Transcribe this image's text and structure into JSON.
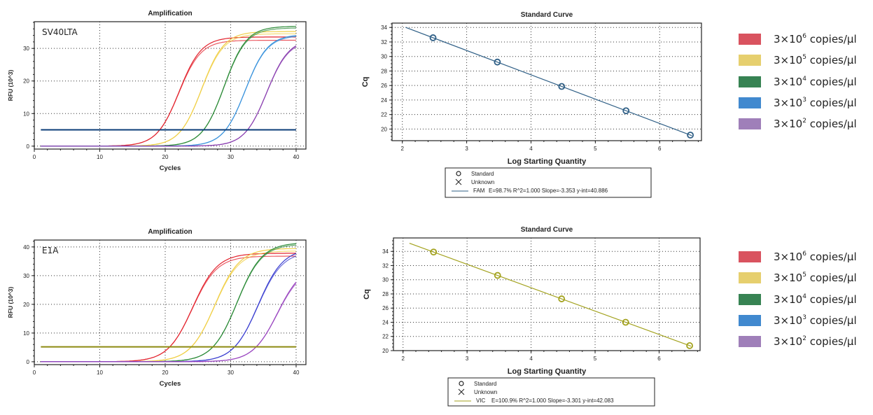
{
  "legend": [
    {
      "base": "3×10",
      "exponent": "6",
      "unit": " copies/µl",
      "color": "#d9535f"
    },
    {
      "base": "3×10",
      "exponent": "5",
      "unit": " copies/µl",
      "color": "#e6cf6e"
    },
    {
      "base": "3×10",
      "exponent": "4",
      "unit": " copies/µl",
      "color": "#378353"
    },
    {
      "base": "3×10",
      "exponent": "3",
      "unit": " copies/µl",
      "color": "#4189cf"
    },
    {
      "base": "3×10",
      "exponent": "2",
      "unit": " copies/µl",
      "color": "#9f7fb9"
    }
  ],
  "chart_data": [
    {
      "type": "line",
      "title": "Amplification",
      "label": "SV40LTA",
      "xlabel": "Cycles",
      "ylabel": "RFU (10^3)",
      "xlim": [
        0,
        41.5
      ],
      "ylim": [
        -0.9,
        38.2
      ],
      "xticks": [
        0,
        10,
        20,
        30,
        40
      ],
      "yticks": [
        0,
        10,
        20,
        30
      ],
      "grid": true,
      "threshold": 5,
      "threshold_color": "#0b3c78",
      "series": [
        {
          "name": "3×10^6 copies/µl",
          "color": "#e3242f",
          "cq": 19.17,
          "plateau": [
            33.5,
            32.5
          ]
        },
        {
          "name": "3×10^5 copies/µl",
          "color": "#f0cf45",
          "cq": 22.52,
          "plateau": [
            35.2,
            34.5
          ]
        },
        {
          "name": "3×10^4 copies/µl",
          "color": "#2a8a36",
          "cq": 25.87,
          "plateau": [
            36.8,
            36.3
          ]
        },
        {
          "name": "3×10^3 copies/µl",
          "color": "#3892dc",
          "cq": 29.23,
          "plateau": [
            34.3,
            34.0
          ]
        },
        {
          "name": "3×10^2 copies/µl",
          "color": "#8a3fb0",
          "cq": 32.58,
          "plateau": [
            33.0,
            32.6
          ]
        }
      ]
    },
    {
      "type": "scatter",
      "title": "Standard Curve",
      "xlabel": "Log Starting Quantity",
      "ylabel": "Cq",
      "xlim": [
        1.84,
        6.65
      ],
      "ylim": [
        18.4,
        34.6
      ],
      "xticks": [
        2,
        3,
        4,
        5,
        6
      ],
      "yticks": [
        20,
        22,
        24,
        26,
        28,
        30,
        32,
        34
      ],
      "grid": true,
      "color": "#2f5f86",
      "points": {
        "x": [
          2.477,
          3.477,
          4.477,
          5.477,
          6.477
        ],
        "y": [
          32.58,
          29.23,
          25.87,
          22.52,
          19.17
        ]
      },
      "fit": {
        "slope": -3.353,
        "intercept": 40.886,
        "x_range": [
          2.05,
          6.5
        ]
      },
      "legend": {
        "standard": "Standard",
        "unknown": "Unknown",
        "fit_label": "FAM",
        "stats": "E=98.7% R^2=1.000 Slope=-3.353 y-int=40.886"
      }
    },
    {
      "type": "line",
      "title": "Amplification",
      "label": "E1A",
      "xlabel": "Cycles",
      "ylabel": "RFU (10^3)",
      "xlim": [
        0,
        41.5
      ],
      "ylim": [
        -1,
        42.4
      ],
      "xticks": [
        0,
        10,
        20,
        30,
        40
      ],
      "yticks": [
        0,
        10,
        20,
        30,
        40
      ],
      "grid": true,
      "threshold": 5.2,
      "threshold_color": "#8c8a10",
      "series": [
        {
          "name": "3×10^6 copies/µl",
          "color": "#e3242f",
          "cq": 20.7,
          "plateau": [
            37.8,
            36.8
          ]
        },
        {
          "name": "3×10^5 copies/µl",
          "color": "#f0cf45",
          "cq": 24.0,
          "plateau": [
            39.5,
            38.6
          ]
        },
        {
          "name": "3×10^4 copies/µl",
          "color": "#2a8a36",
          "cq": 27.3,
          "plateau": [
            41.5,
            41.0
          ]
        },
        {
          "name": "3×10^3 copies/µl",
          "color": "#3b3fd0",
          "cq": 30.61,
          "plateau": [
            39.5,
            38.5
          ]
        },
        {
          "name": "3×10^2 copies/µl",
          "color": "#9a45c0",
          "cq": 33.91,
          "plateau": [
            34.0,
            33.2
          ]
        }
      ]
    },
    {
      "type": "scatter",
      "title": "Standard Curve",
      "xlabel": "Log Starting Quantity",
      "ylabel": "Cq",
      "xlim": [
        1.85,
        6.64
      ],
      "ylim": [
        20,
        35.9
      ],
      "xticks": [
        2,
        3,
        4,
        5,
        6
      ],
      "yticks": [
        20,
        22,
        24,
        26,
        28,
        30,
        32,
        34
      ],
      "grid": true,
      "color": "#a3a21e",
      "points": {
        "x": [
          2.477,
          3.477,
          4.477,
          5.477,
          6.477
        ],
        "y": [
          33.91,
          30.61,
          27.3,
          24.0,
          20.7
        ]
      },
      "fit": {
        "slope": -3.301,
        "intercept": 42.083,
        "x_range": [
          2.1,
          6.5
        ]
      },
      "legend": {
        "standard": "Standard",
        "unknown": "Unknown",
        "fit_label": "VIC",
        "stats": "E=100.9% R^2=1.000 Slope=-3.301 y-int=42.083"
      }
    }
  ]
}
